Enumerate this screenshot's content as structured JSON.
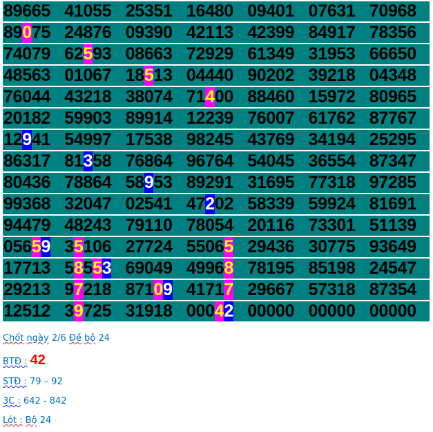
{
  "colors": {
    "row_bg": "#008080",
    "pink_bg": "#ff00ff",
    "pink_text": "#ffff00",
    "blue_bg": "#0000ff",
    "blue_text": "#ffffff",
    "note_text": "#0070c0",
    "highlight_number": "#ff0000"
  },
  "grid": {
    "rows": [
      [
        "89665",
        "41055",
        "25351",
        "16480",
        "09401",
        "07631",
        "70968"
      ],
      [
        "89075",
        "24876",
        "09390",
        "42113",
        "42399",
        "84917",
        "78356"
      ],
      [
        "74079",
        "62593",
        "08663",
        "72929",
        "61349",
        "31953",
        "66650"
      ],
      [
        "48563",
        "01067",
        "18513",
        "04440",
        "90202",
        "39218",
        "04348"
      ],
      [
        "76044",
        "43218",
        "38074",
        "71400",
        "88460",
        "15972",
        "80965"
      ],
      [
        "20182",
        "59903",
        "89914",
        "12239",
        "76007",
        "61762",
        "87767"
      ],
      [
        "12941",
        "54997",
        "17538",
        "98245",
        "43769",
        "34194",
        "25295"
      ],
      [
        "86317",
        "81358",
        "76864",
        "96764",
        "54045",
        "36554",
        "87347"
      ],
      [
        "80436",
        "78864",
        "58953",
        "89291",
        "31695",
        "77318",
        "97285"
      ],
      [
        "99368",
        "32047",
        "02541",
        "47202",
        "58339",
        "59924",
        "81691"
      ],
      [
        "94479",
        "48243",
        "79110",
        "78054",
        "20116",
        "73301",
        "51139"
      ],
      [
        "05659",
        "35106",
        "27724",
        "55065",
        "29436",
        "30775",
        "93649"
      ],
      [
        "17713",
        "58553",
        "69049",
        "49968",
        "78195",
        "85198",
        "24547"
      ],
      [
        "29213",
        "97218",
        "87109",
        "41717",
        "29667",
        "57318",
        "87354"
      ],
      [
        "12512",
        "39725",
        "31918",
        "00042",
        "00000",
        "00000",
        "00000"
      ]
    ],
    "highlights": [
      {
        "row": 1,
        "col": 0,
        "digit": 2,
        "style": "pink"
      },
      {
        "row": 2,
        "col": 1,
        "digit": 2,
        "style": "pink"
      },
      {
        "row": 3,
        "col": 2,
        "digit": 2,
        "style": "pink"
      },
      {
        "row": 4,
        "col": 3,
        "digit": 2,
        "style": "pink"
      },
      {
        "row": 6,
        "col": 0,
        "digit": 2,
        "style": "blue"
      },
      {
        "row": 7,
        "col": 1,
        "digit": 2,
        "style": "blue"
      },
      {
        "row": 8,
        "col": 2,
        "digit": 2,
        "style": "blue"
      },
      {
        "row": 9,
        "col": 3,
        "digit": 2,
        "style": "blue"
      },
      {
        "row": 11,
        "col": 0,
        "digit": 3,
        "style": "pink"
      },
      {
        "row": 11,
        "col": 0,
        "digit": 4,
        "style": "blue"
      },
      {
        "row": 11,
        "col": 1,
        "digit": 1,
        "style": "pink"
      },
      {
        "row": 11,
        "col": 3,
        "digit": 4,
        "style": "pink"
      },
      {
        "row": 12,
        "col": 1,
        "digit": 1,
        "style": "pink"
      },
      {
        "row": 12,
        "col": 1,
        "digit": 3,
        "style": "pink"
      },
      {
        "row": 12,
        "col": 1,
        "digit": 4,
        "style": "blue"
      },
      {
        "row": 12,
        "col": 3,
        "digit": 4,
        "style": "pink"
      },
      {
        "row": 13,
        "col": 1,
        "digit": 1,
        "style": "pink"
      },
      {
        "row": 13,
        "col": 2,
        "digit": 3,
        "style": "pink"
      },
      {
        "row": 13,
        "col": 2,
        "digit": 4,
        "style": "blue"
      },
      {
        "row": 13,
        "col": 3,
        "digit": 4,
        "style": "pink"
      },
      {
        "row": 14,
        "col": 1,
        "digit": 1,
        "style": "pink"
      },
      {
        "row": 14,
        "col": 3,
        "digit": 3,
        "style": "pink"
      },
      {
        "row": 14,
        "col": 3,
        "digit": 4,
        "style": "blue"
      }
    ]
  },
  "notes": {
    "line1": {
      "w1": "Chốt",
      "w2": "ngày",
      "w3": "2/6",
      "w4": "Đề",
      "w5": "bộ",
      "w6": "24"
    },
    "btd": {
      "label": "BTĐ :",
      "value": "42"
    },
    "std": {
      "label": "STĐ :",
      "value": "79 – 92"
    },
    "3c": {
      "label": "3C :",
      "value": "642 - 842"
    },
    "lot": {
      "label": "Lót :",
      "w1": "Bộ",
      "w2": "24"
    }
  }
}
